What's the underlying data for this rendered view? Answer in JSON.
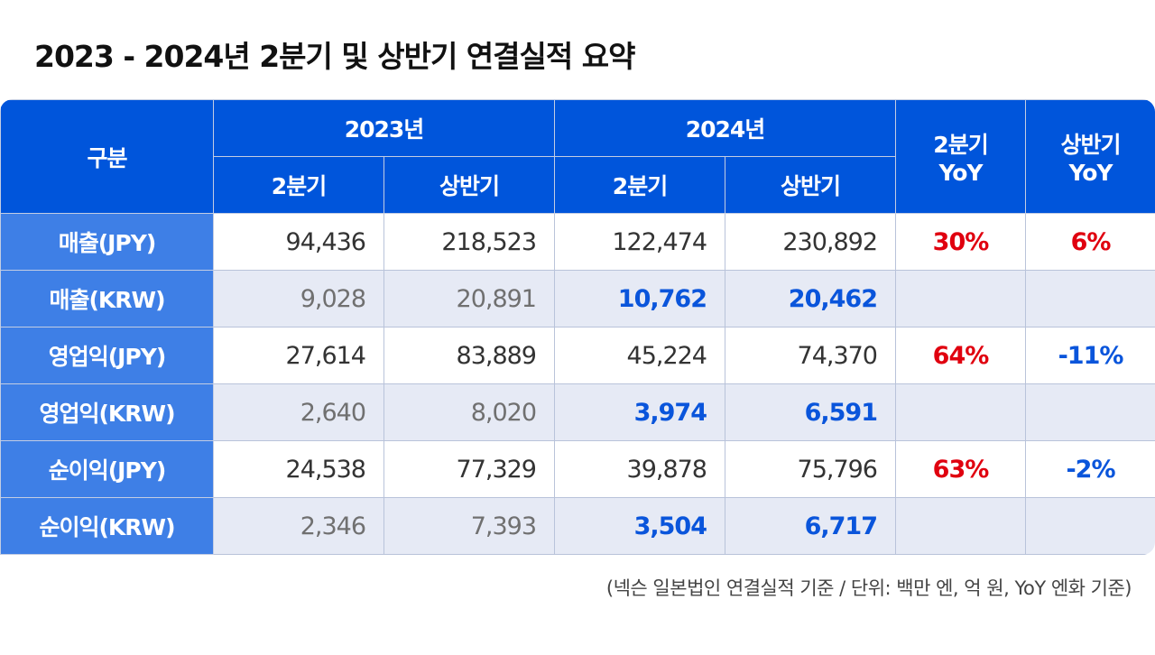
{
  "title": "2023 - 2024년 2분기 및 상반기 연결실적 요약",
  "header": {
    "category": "구분",
    "year2023": "2023년",
    "year2024": "2024년",
    "q2": "2분기",
    "h1": "상반기",
    "q2yoy": "2분기 YoY",
    "h1yoy": "상반기 YoY"
  },
  "rows": [
    {
      "label": "매출(JPY)",
      "v": [
        "94,436",
        "218,523",
        "122,474",
        "230,892"
      ],
      "q2yoy": "30%",
      "h1yoy": "6%",
      "q2yoy_color": "red",
      "h1yoy_color": "red"
    },
    {
      "label": "매출(KRW)",
      "v": [
        "9,028",
        "20,891",
        "10,762",
        "20,462"
      ],
      "q2yoy": "",
      "h1yoy": ""
    },
    {
      "label": "영업익(JPY)",
      "v": [
        "27,614",
        "83,889",
        "45,224",
        "74,370"
      ],
      "q2yoy": "64%",
      "h1yoy": "-11%",
      "q2yoy_color": "red",
      "h1yoy_color": "blue"
    },
    {
      "label": "영업익(KRW)",
      "v": [
        "2,640",
        "8,020",
        "3,974",
        "6,591"
      ],
      "q2yoy": "",
      "h1yoy": ""
    },
    {
      "label": "순이익(JPY)",
      "v": [
        "24,538",
        "77,329",
        "39,878",
        "75,796"
      ],
      "q2yoy": "63%",
      "h1yoy": "-2%",
      "q2yoy_color": "red",
      "h1yoy_color": "blue"
    },
    {
      "label": "순이익(KRW)",
      "v": [
        "2,346",
        "7,393",
        "3,504",
        "6,717"
      ],
      "q2yoy": "",
      "h1yoy": ""
    }
  ],
  "footnote": "(넥슨 일본법인 연결실적 기준 / 단위: 백만 엔, 억 원, YoY 엔화 기준)",
  "colors": {
    "header": "#0055DB",
    "label": "#3E7FE6",
    "alt_row": "#E6EAF5",
    "increase": "#E0000F",
    "decrease": "#0A55DB"
  }
}
